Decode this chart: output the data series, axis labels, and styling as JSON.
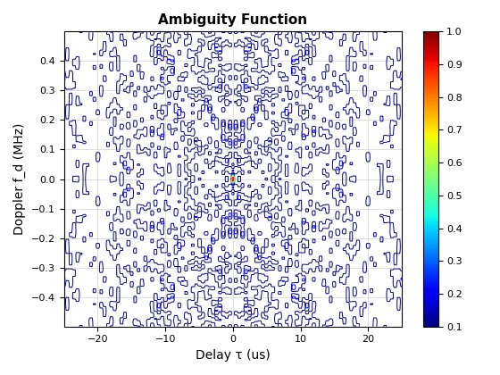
{
  "title": "Ambiguity Function",
  "xlabel": "Delay τ (us)",
  "ylabel": "Doppler f_d (MHz)",
  "xlim": [
    -25,
    25
  ],
  "ylim": [
    -0.5,
    0.5
  ],
  "xticks": [
    -20,
    -10,
    0,
    10,
    20
  ],
  "yticks": [
    -0.4,
    -0.3,
    -0.2,
    -0.1,
    0.0,
    0.1,
    0.2,
    0.3,
    0.4
  ],
  "colorbar_ticks": [
    0.1,
    0.2,
    0.3,
    0.4,
    0.5,
    0.6,
    0.7,
    0.8,
    0.9,
    1.0
  ],
  "contour_levels": [
    0.1,
    0.2,
    0.3,
    0.4,
    0.5,
    0.6,
    0.7,
    0.8,
    0.9,
    1.0
  ],
  "cmap": "jet",
  "background_color": "#ffffff",
  "grid": true,
  "seed": 1234,
  "title_fontsize": 11,
  "label_fontsize": 10,
  "contour_linewidth": 0.7,
  "N_tau": 300,
  "N_fd": 300
}
